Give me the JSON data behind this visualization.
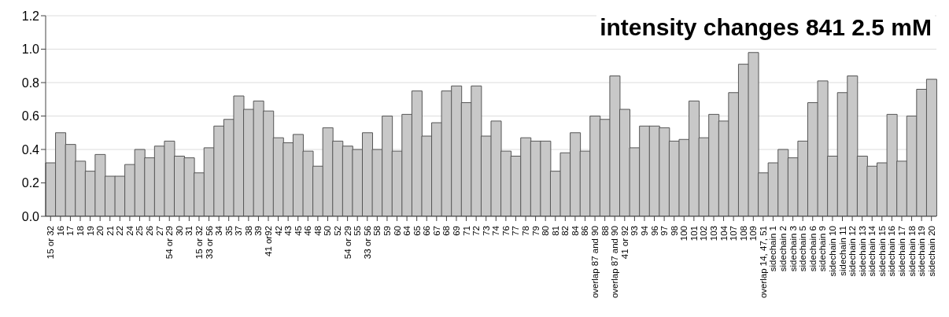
{
  "chart_data": {
    "type": "bar",
    "title": "intensity changes 841 2.5 mM",
    "categories": [
      "15 or 32",
      "16",
      "17",
      "18",
      "19",
      "20",
      "21",
      "22",
      "24",
      "25",
      "26",
      "27",
      "54 or 29",
      "30",
      "31",
      "15 or 32",
      "33 or 56",
      "34",
      "35",
      "37",
      "38",
      "39",
      "41 or92",
      "42",
      "43",
      "45",
      "46",
      "48",
      "50",
      "52",
      "54 or 29",
      "55",
      "33 or 56",
      "58",
      "59",
      "60",
      "64",
      "65",
      "66",
      "67",
      "68",
      "69",
      "71",
      "72",
      "73",
      "74",
      "76",
      "77",
      "78",
      "79",
      "80",
      "81",
      "82",
      "84",
      "86",
      "overlap 87 and 90",
      "88",
      "overlap 87 and 90",
      "41 or 92",
      "93",
      "94",
      "96",
      "97",
      "98",
      "100",
      "101",
      "102",
      "103",
      "104",
      "107",
      "108",
      "109",
      "overlap 14, 47, 51",
      "sidechain 1",
      "sidechain 2",
      "sidechain 3",
      "sidechain 5",
      "sidechain 6",
      "sidechain 9",
      "sidechain 10",
      "sidechain 11",
      "sidechain 12",
      "sidechain 13",
      "sidechain 14",
      "sidechain 15",
      "sidechain 16",
      "sidechain 17",
      "sidechain 18",
      "sidechain 19",
      "sidechain 20"
    ],
    "values": [
      0.32,
      0.5,
      0.43,
      0.33,
      0.27,
      0.37,
      0.24,
      0.24,
      0.31,
      0.4,
      0.35,
      0.42,
      0.45,
      0.36,
      0.35,
      0.26,
      0.41,
      0.54,
      0.58,
      0.72,
      0.64,
      0.69,
      0.63,
      0.47,
      0.44,
      0.49,
      0.39,
      0.3,
      0.53,
      0.45,
      0.42,
      0.4,
      0.5,
      0.4,
      0.6,
      0.39,
      0.61,
      0.75,
      0.48,
      0.56,
      0.75,
      0.78,
      0.68,
      0.78,
      0.48,
      0.57,
      0.39,
      0.36,
      0.47,
      0.45,
      0.45,
      0.27,
      0.38,
      0.5,
      0.39,
      0.6,
      0.58,
      0.84,
      0.64,
      0.41,
      0.54,
      0.54,
      0.53,
      0.45,
      0.46,
      0.69,
      0.47,
      0.61,
      0.57,
      0.74,
      0.91,
      0.98,
      0.26,
      0.32,
      0.4,
      0.35,
      0.45,
      0.68,
      0.81,
      0.36,
      0.74,
      0.84,
      0.36,
      0.3,
      0.32,
      0.61,
      0.33,
      0.6,
      0.76,
      0.82
    ],
    "color": "#c8c8c8",
    "ylim": [
      0,
      1.2
    ],
    "yticks": [
      {
        "value": 0,
        "label": "0.0"
      },
      {
        "value": 0.2,
        "label": "0.2"
      },
      {
        "value": 0.4,
        "label": "0.4"
      },
      {
        "value": 0.6,
        "label": "0.6"
      },
      {
        "value": 0.8,
        "label": "0.8"
      },
      {
        "value": 1,
        "label": "1.0"
      },
      {
        "value": 1.2,
        "label": "1.2"
      }
    ],
    "grid": "y"
  }
}
